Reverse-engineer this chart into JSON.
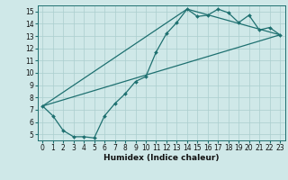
{
  "xlabel": "Humidex (Indice chaleur)",
  "background_color": "#cfe8e8",
  "line_color": "#1e7070",
  "xlim": [
    -0.5,
    23.5
  ],
  "ylim": [
    4.5,
    15.5
  ],
  "xticks": [
    0,
    1,
    2,
    3,
    4,
    5,
    6,
    7,
    8,
    9,
    10,
    11,
    12,
    13,
    14,
    15,
    16,
    17,
    18,
    19,
    20,
    21,
    22,
    23
  ],
  "yticks": [
    5,
    6,
    7,
    8,
    9,
    10,
    11,
    12,
    13,
    14,
    15
  ],
  "series1_x": [
    0,
    1,
    2,
    3,
    4,
    5,
    6,
    7,
    8,
    9,
    10,
    11,
    12,
    13,
    14,
    15,
    16,
    17,
    18,
    19,
    20,
    21,
    22,
    23
  ],
  "series1_y": [
    7.3,
    6.5,
    5.3,
    4.8,
    4.8,
    4.7,
    6.5,
    7.5,
    8.3,
    9.3,
    9.7,
    11.7,
    13.2,
    14.1,
    15.2,
    14.6,
    14.7,
    15.2,
    14.9,
    14.1,
    14.7,
    13.5,
    13.7,
    13.1
  ],
  "series2_x": [
    0,
    23
  ],
  "series2_y": [
    7.3,
    13.1
  ],
  "series3_x": [
    0,
    14,
    23
  ],
  "series3_y": [
    7.3,
    15.2,
    13.1
  ],
  "tick_fontsize": 5.5,
  "xlabel_fontsize": 6.5
}
